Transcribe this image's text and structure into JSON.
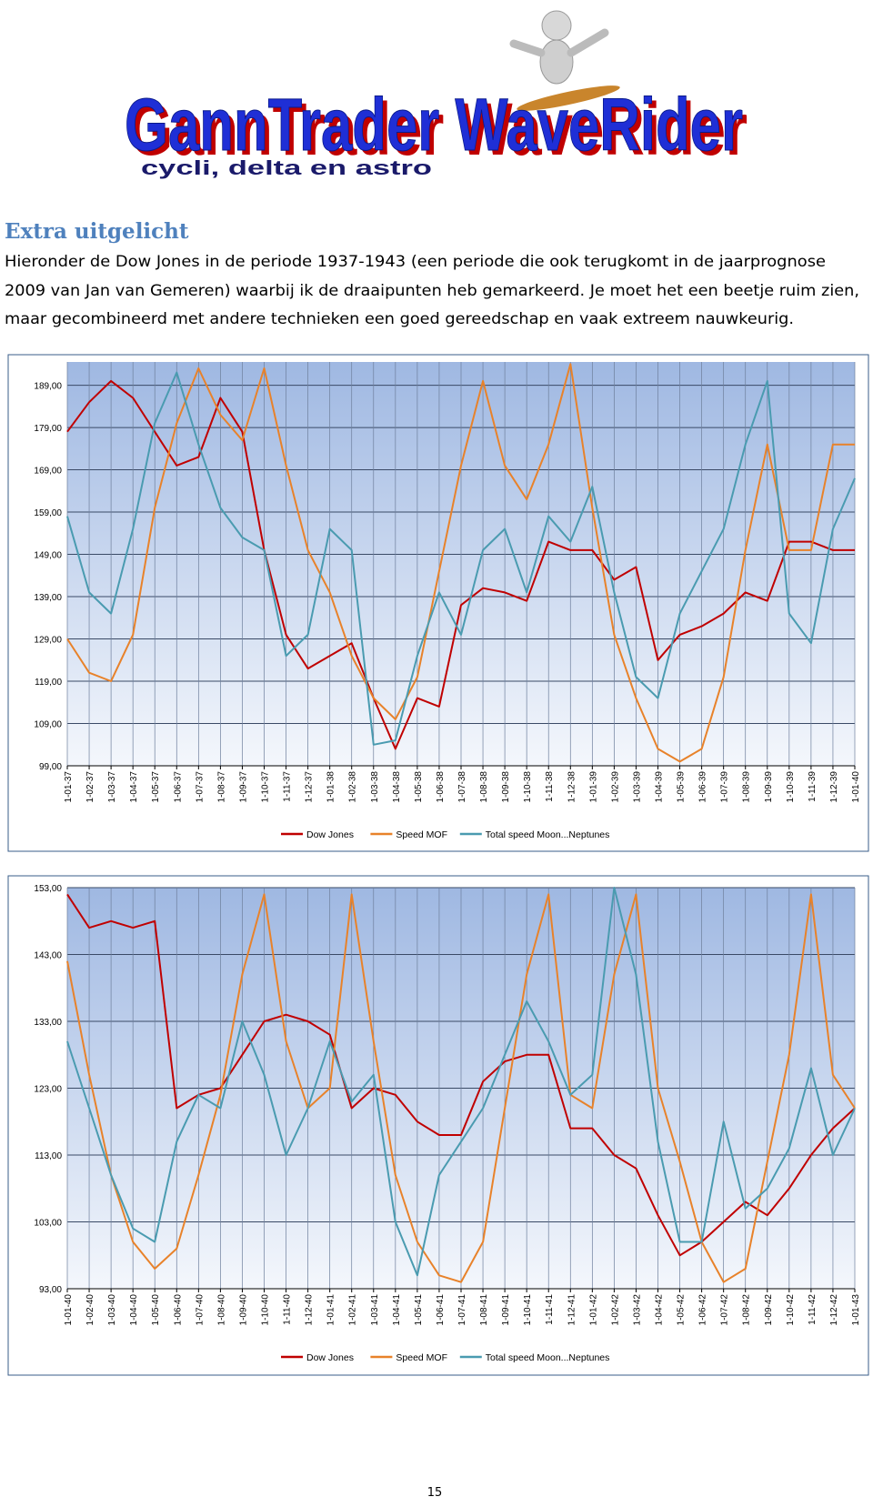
{
  "logo": {
    "title": "GannTrader WaveRider",
    "tagline": "cycli, delta en astro"
  },
  "heading": "Extra uitgelicht",
  "paragraph": [
    "Hieronder de Dow Jones in de periode 1937-1943 (een periode die ook terugkomt in de jaarprognose",
    "2009 van Jan van Gemeren) waarbij ik de draaipunten heb gemarkeerd. Je moet het een beetje ruim zien,",
    "maar gecombineerd met andere technieken een goed gereedschap en vaak extreem nauwkeurig."
  ],
  "page_number": "15",
  "chart_data": [
    {
      "type": "line",
      "categories": [
        "1-01-37",
        "1-02-37",
        "1-03-37",
        "1-04-37",
        "1-05-37",
        "1-06-37",
        "1-07-37",
        "1-08-37",
        "1-09-37",
        "1-10-37",
        "1-11-37",
        "1-12-37",
        "1-01-38",
        "1-02-38",
        "1-03-38",
        "1-04-38",
        "1-05-38",
        "1-06-38",
        "1-07-38",
        "1-08-38",
        "1-09-38",
        "1-10-38",
        "1-11-38",
        "1-12-38",
        "1-01-39",
        "1-02-39",
        "1-03-39",
        "1-04-39",
        "1-05-39",
        "1-06-39",
        "1-07-39",
        "1-08-39",
        "1-09-39",
        "1-10-39",
        "1-11-39",
        "1-12-39",
        "1-01-40"
      ],
      "series": [
        {
          "name": "Dow Jones",
          "color": "#c00000",
          "values": [
            178,
            185,
            190,
            186,
            178,
            170,
            172,
            186,
            178,
            150,
            130,
            122,
            125,
            128,
            115,
            103,
            115,
            113,
            137,
            141,
            140,
            138,
            152,
            150,
            150,
            143,
            146,
            124,
            130,
            132,
            135,
            140,
            138,
            152,
            152,
            150,
            150
          ]
        },
        {
          "name": "Speed MOF",
          "color": "#e8822a",
          "values": [
            129,
            121,
            119,
            130,
            160,
            180,
            193,
            182,
            176,
            193,
            170,
            150,
            140,
            125,
            115,
            110,
            120,
            145,
            170,
            190,
            170,
            162,
            175,
            194,
            160,
            130,
            115,
            103,
            100,
            103,
            120,
            150,
            175,
            150,
            150,
            175,
            175
          ]
        },
        {
          "name": "Total speed Moon...Neptunes",
          "color": "#4a9bb0",
          "values": [
            158,
            140,
            135,
            155,
            180,
            192,
            175,
            160,
            153,
            150,
            125,
            130,
            155,
            150,
            104,
            105,
            125,
            140,
            130,
            150,
            155,
            140,
            158,
            152,
            165,
            140,
            120,
            115,
            135,
            145,
            155,
            175,
            190,
            135,
            128,
            155,
            167
          ]
        }
      ],
      "ylim": [
        99,
        194.5
      ],
      "yticks": [
        {
          "value": 99,
          "label": "99,00"
        },
        {
          "value": 109,
          "label": "109,00"
        },
        {
          "value": 119,
          "label": "119,00"
        },
        {
          "value": 129,
          "label": "129,00"
        },
        {
          "value": 139,
          "label": "139,00"
        },
        {
          "value": 149,
          "label": "149,00"
        },
        {
          "value": 159,
          "label": "159,00"
        },
        {
          "value": 169,
          "label": "169,00"
        },
        {
          "value": 179,
          "label": "179,00"
        },
        {
          "value": 189,
          "label": "189,00"
        }
      ],
      "grid": true,
      "legend": "bottom"
    },
    {
      "type": "line",
      "categories": [
        "1-01-40",
        "1-02-40",
        "1-03-40",
        "1-04-40",
        "1-05-40",
        "1-06-40",
        "1-07-40",
        "1-08-40",
        "1-09-40",
        "1-10-40",
        "1-11-40",
        "1-12-40",
        "1-01-41",
        "1-02-41",
        "1-03-41",
        "1-04-41",
        "1-05-41",
        "1-06-41",
        "1-07-41",
        "1-08-41",
        "1-09-41",
        "1-10-41",
        "1-11-41",
        "1-12-41",
        "1-01-42",
        "1-02-42",
        "1-03-42",
        "1-04-42",
        "1-05-42",
        "1-06-42",
        "1-07-42",
        "1-08-42",
        "1-09-42",
        "1-10-42",
        "1-11-42",
        "1-12-42",
        "1-01-43"
      ],
      "series": [
        {
          "name": "Dow Jones",
          "color": "#c00000",
          "values": [
            152,
            147,
            148,
            147,
            148,
            120,
            122,
            123,
            128,
            133,
            134,
            133,
            131,
            120,
            123,
            122,
            118,
            116,
            116,
            124,
            127,
            128,
            128,
            117,
            117,
            113,
            111,
            104,
            98,
            100,
            103,
            106,
            104,
            108,
            113,
            117,
            120
          ]
        },
        {
          "name": "Speed MOF",
          "color": "#e8822a",
          "values": [
            142,
            125,
            110,
            100,
            96,
            99,
            110,
            122,
            140,
            152,
            130,
            120,
            123,
            152,
            130,
            110,
            100,
            95,
            94,
            100,
            120,
            140,
            152,
            122,
            120,
            140,
            152,
            123,
            112,
            100,
            94,
            96,
            112,
            128,
            152,
            125,
            120
          ]
        },
        {
          "name": "Total speed Moon...Neptunes",
          "color": "#4a9bb0",
          "values": [
            130,
            120,
            110,
            102,
            100,
            115,
            122,
            120,
            133,
            125,
            113,
            120,
            130,
            121,
            125,
            103,
            95,
            110,
            115,
            120,
            128,
            136,
            130,
            122,
            125,
            153,
            140,
            115,
            100,
            100,
            118,
            105,
            108,
            114,
            126,
            113,
            120
          ]
        }
      ],
      "ylim": [
        93,
        153
      ],
      "yticks": [
        {
          "value": 93,
          "label": "93,00"
        },
        {
          "value": 103,
          "label": "103,00"
        },
        {
          "value": 113,
          "label": "113,00"
        },
        {
          "value": 123,
          "label": "123,00"
        },
        {
          "value": 133,
          "label": "133,00"
        },
        {
          "value": 143,
          "label": "143,00"
        },
        {
          "value": 153,
          "label": "153,00"
        }
      ],
      "grid": true,
      "legend": "bottom"
    }
  ]
}
